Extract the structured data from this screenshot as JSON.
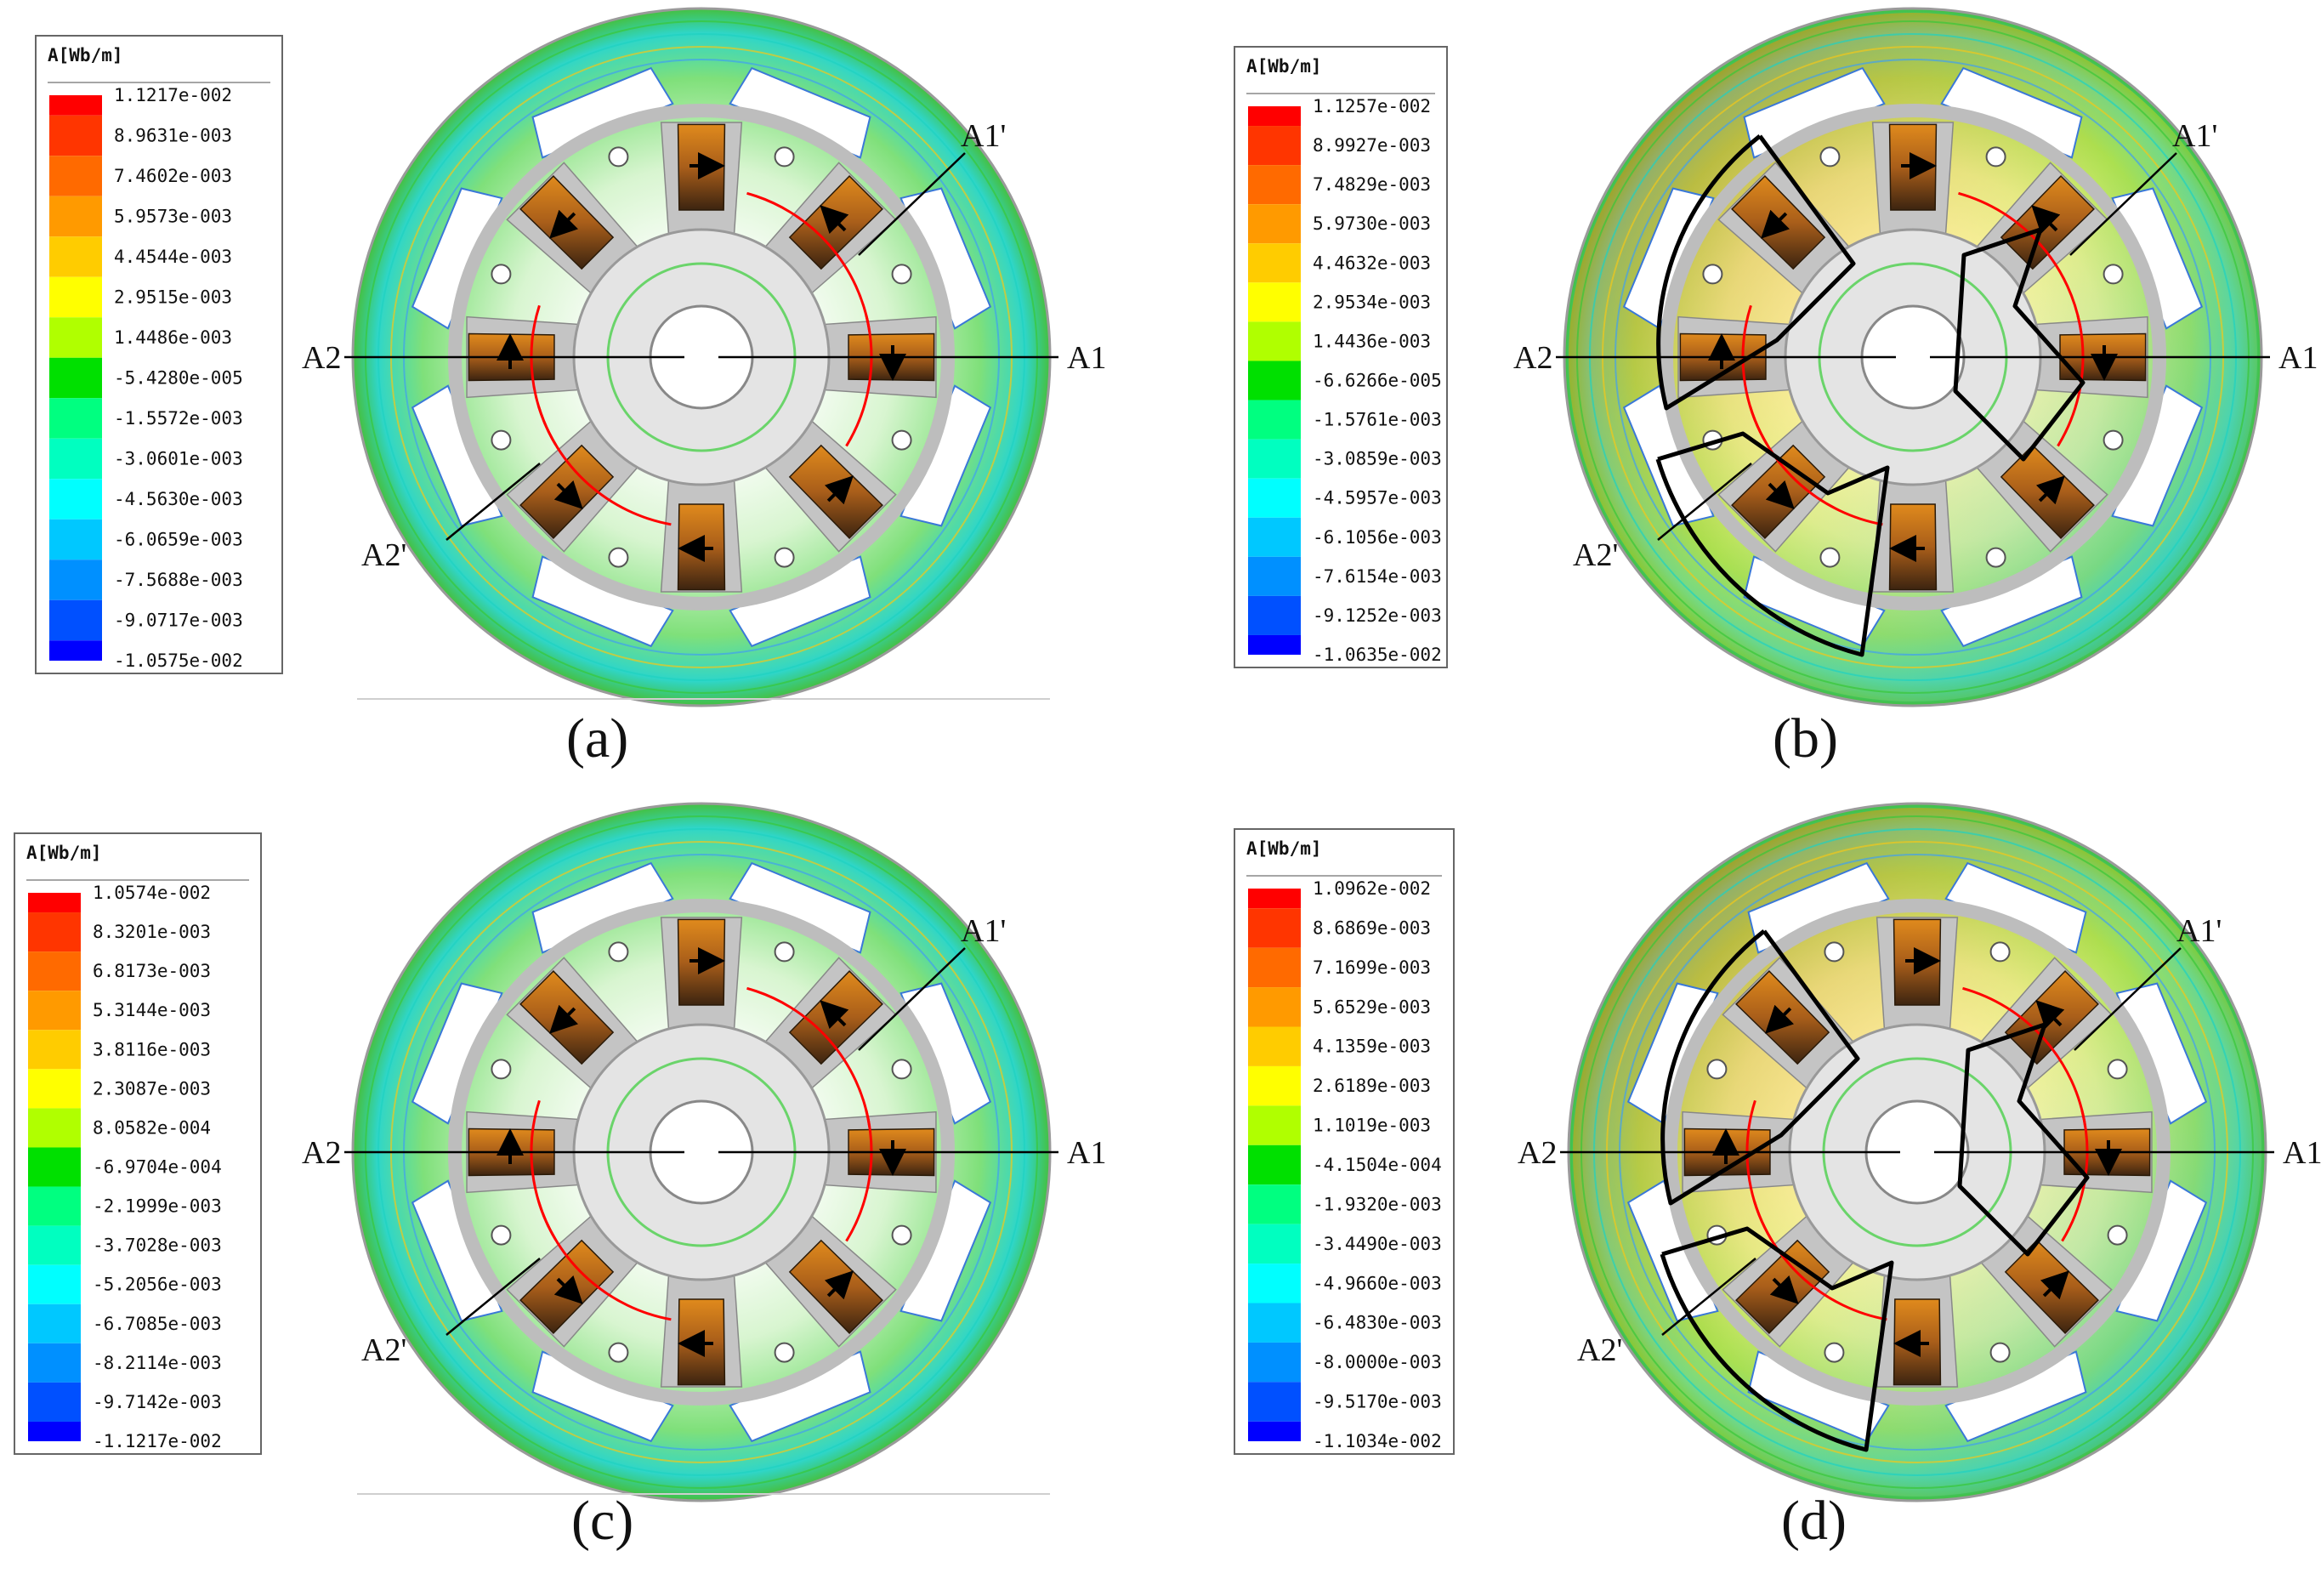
{
  "panels": [
    {
      "id": "a",
      "caption": "(a)",
      "legend_title": "A[Wb/m]",
      "legend_values": [
        "1.1217e-002",
        "8.9631e-003",
        "7.4602e-003",
        "5.9573e-003",
        "4.4544e-003",
        "2.9515e-003",
        "1.4486e-003",
        "-5.4280e-005",
        "-1.5572e-003",
        "-3.0601e-003",
        "-4.5630e-003",
        "-6.0659e-003",
        "-7.5688e-003",
        "-9.0717e-003",
        "-1.0575e-002"
      ],
      "labels": {
        "a1": "A1",
        "a1p": "A1'",
        "a2": "A2",
        "a2p": "A2'"
      },
      "flux_paths": false
    },
    {
      "id": "b",
      "caption": "(b)",
      "legend_title": "A[Wb/m]",
      "legend_values": [
        "1.1257e-002",
        "8.9927e-003",
        "7.4829e-003",
        "5.9730e-003",
        "4.4632e-003",
        "2.9534e-003",
        "1.4436e-003",
        "-6.6266e-005",
        "-1.5761e-003",
        "-3.0859e-003",
        "-4.5957e-003",
        "-6.1056e-003",
        "-7.6154e-003",
        "-9.1252e-003",
        "-1.0635e-002"
      ],
      "labels": {
        "a1": "A1",
        "a1p": "A1'",
        "a2": "A2",
        "a2p": "A2'"
      },
      "flux_paths": true
    },
    {
      "id": "c",
      "caption": "(c)",
      "legend_title": "A[Wb/m]",
      "legend_values": [
        "1.0574e-002",
        "8.3201e-003",
        "6.8173e-003",
        "5.3144e-003",
        "3.8116e-003",
        "2.3087e-003",
        "8.0582e-004",
        "-6.9704e-004",
        "-2.1999e-003",
        "-3.7028e-003",
        "-5.2056e-003",
        "-6.7085e-003",
        "-8.2114e-003",
        "-9.7142e-003",
        "-1.1217e-002"
      ],
      "labels": {
        "a1": "A1",
        "a1p": "A1'",
        "a2": "A2",
        "a2p": "A2'"
      },
      "flux_paths": false
    },
    {
      "id": "d",
      "caption": "(d)",
      "legend_title": "A[Wb/m]",
      "legend_values": [
        "1.0962e-002",
        "8.6869e-003",
        "7.1699e-003",
        "5.6529e-003",
        "4.1359e-003",
        "2.6189e-003",
        "1.1019e-003",
        "-4.1504e-004",
        "-1.9320e-003",
        "-3.4490e-003",
        "-4.9660e-003",
        "-6.4830e-003",
        "-8.0000e-003",
        "-9.5170e-003",
        "-1.1034e-002"
      ],
      "labels": {
        "a1": "A1",
        "a1p": "A1'",
        "a2": "A2",
        "a2p": "A2'"
      },
      "flux_paths": true
    }
  ],
  "colors": {
    "colormap": [
      "#ff0000",
      "#ff3500",
      "#ff6a00",
      "#ff9a00",
      "#ffcc00",
      "#ffff00",
      "#b0ff00",
      "#00e000",
      "#00ff80",
      "#00ffc0",
      "#00ffff",
      "#00c8ff",
      "#0090ff",
      "#0050ff",
      "#0000ff"
    ],
    "steel": "#c4c4c4",
    "rotor_ring": "#bdbdbd",
    "coil_mid": "#b86a1c",
    "coil_dark": "#4a2a12",
    "red_arc": "#ff0000",
    "path": "#000000"
  }
}
